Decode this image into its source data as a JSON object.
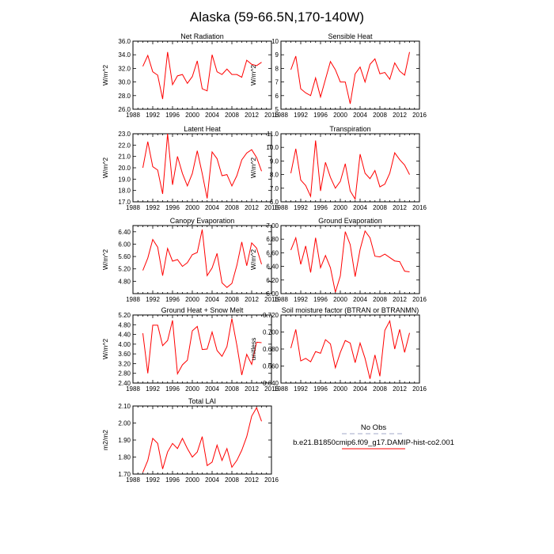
{
  "figure": {
    "title": "Alaska (59-66.5N,170-140W)"
  },
  "legend": {
    "obs_label": "No Obs",
    "obs_color": "#a0a8c8",
    "model_label": "b.e21.B1850cmip6.f09_g17.DAMIP-hist-co2.001",
    "model_color": "#ff0000"
  },
  "chart_data": [
    {
      "type": "line",
      "title": "Net Radiation",
      "ylabel": "W/m^2",
      "xlim": [
        1988,
        2016
      ],
      "ylim": [
        26,
        36
      ],
      "xticks": [
        1988,
        1992,
        1996,
        2000,
        2004,
        2008,
        2012,
        2016
      ],
      "yticks": [
        "26.0",
        "28.0",
        "30.0",
        "32.0",
        "34.0",
        "36.0"
      ],
      "grid": false,
      "series": [
        {
          "x": [
            1990,
            1991,
            1992,
            1993,
            1994,
            1995,
            1996,
            1997,
            1998,
            1999,
            2000,
            2001,
            2002,
            2003,
            2004,
            2005,
            2006,
            2007,
            2008,
            2009,
            2010,
            2011,
            2012,
            2013,
            2014
          ],
          "values": [
            32.3,
            33.9,
            31.5,
            31.0,
            27.5,
            34.4,
            29.6,
            30.9,
            31.1,
            29.8,
            30.8,
            33.1,
            29.0,
            28.7,
            34.0,
            31.5,
            31.1,
            31.9,
            31.1,
            31.1,
            30.7,
            33.2,
            32.6,
            32.4,
            32.9
          ]
        }
      ]
    },
    {
      "type": "line",
      "title": "Sensible Heat",
      "ylabel": "W/m^2",
      "xlim": [
        1988,
        2016
      ],
      "ylim": [
        5,
        10
      ],
      "xticks": [
        1988,
        1992,
        1996,
        2000,
        2004,
        2008,
        2012,
        2016
      ],
      "yticks": [
        "5",
        "6",
        "7",
        "8",
        "9",
        "10"
      ],
      "grid": false,
      "series": [
        {
          "x": [
            1990,
            1991,
            1992,
            1993,
            1994,
            1995,
            1996,
            1997,
            1998,
            1999,
            2000,
            2001,
            2002,
            2003,
            2004,
            2005,
            2006,
            2007,
            2008,
            2009,
            2010,
            2011,
            2012,
            2013,
            2014
          ],
          "values": [
            7.9,
            8.9,
            6.5,
            6.2,
            6.0,
            7.3,
            5.9,
            7.2,
            8.5,
            7.9,
            7.0,
            7.0,
            5.4,
            7.6,
            8.1,
            7.0,
            8.3,
            8.7,
            7.6,
            7.7,
            7.2,
            8.4,
            7.8,
            7.5,
            9.2
          ]
        }
      ]
    },
    {
      "type": "line",
      "title": "Latent Heat",
      "ylabel": "W/m^2",
      "xlim": [
        1988,
        2016
      ],
      "ylim": [
        17,
        23
      ],
      "xticks": [
        1988,
        1992,
        1996,
        2000,
        2004,
        2008,
        2012,
        2016
      ],
      "yticks": [
        "17.0",
        "18.0",
        "19.0",
        "20.0",
        "21.0",
        "22.0",
        "23.0"
      ],
      "grid": false,
      "series": [
        {
          "x": [
            1990,
            1991,
            1992,
            1993,
            1994,
            1995,
            1996,
            1997,
            1998,
            1999,
            2000,
            2001,
            2002,
            2003,
            2004,
            2005,
            2006,
            2007,
            2008,
            2009,
            2010,
            2011,
            2012,
            2013,
            2014
          ],
          "values": [
            20.0,
            22.3,
            20.1,
            19.8,
            17.7,
            23.0,
            18.5,
            21.0,
            19.5,
            18.4,
            19.5,
            21.5,
            19.5,
            17.3,
            21.4,
            20.8,
            19.3,
            19.4,
            18.4,
            19.3,
            20.7,
            21.3,
            21.6,
            20.9,
            19.7
          ]
        }
      ]
    },
    {
      "type": "line",
      "title": "Transpiration",
      "ylabel": "W/m^2",
      "xlim": [
        1988,
        2016
      ],
      "ylim": [
        6,
        11
      ],
      "xticks": [
        1988,
        1992,
        1996,
        2000,
        2004,
        2008,
        2012,
        2016
      ],
      "yticks": [
        "6.0",
        "7.0",
        "8.0",
        "9.0",
        "10.0",
        "11.0"
      ],
      "grid": false,
      "series": [
        {
          "x": [
            1990,
            1991,
            1992,
            1993,
            1994,
            1995,
            1996,
            1997,
            1998,
            1999,
            2000,
            2001,
            2002,
            2003,
            2004,
            2005,
            2006,
            2007,
            2008,
            2009,
            2010,
            2011,
            2012,
            2013,
            2014
          ],
          "values": [
            8.1,
            9.9,
            7.6,
            7.2,
            6.4,
            10.5,
            6.8,
            8.9,
            7.8,
            7.0,
            7.5,
            8.8,
            6.8,
            6.2,
            9.5,
            8.1,
            7.7,
            8.3,
            7.1,
            7.3,
            8.1,
            9.6,
            9.1,
            8.7,
            8.0
          ]
        }
      ]
    },
    {
      "type": "line",
      "title": "Canopy Evaporation",
      "ylabel": "W/m^2",
      "xlim": [
        1988,
        2016
      ],
      "ylim": [
        4.4,
        6.6
      ],
      "xticks": [
        1988,
        1992,
        1996,
        2000,
        2004,
        2008,
        2012,
        2016
      ],
      "yticks": [
        "4.80",
        "5.20",
        "5.60",
        "6.00",
        "6.40"
      ],
      "grid": false,
      "series": [
        {
          "x": [
            1990,
            1991,
            1992,
            1993,
            1994,
            1995,
            1996,
            1997,
            1998,
            1999,
            2000,
            2001,
            2002,
            2003,
            2004,
            2005,
            2006,
            2007,
            2008,
            2009,
            2010,
            2011,
            2012,
            2013,
            2014
          ],
          "values": [
            5.15,
            5.55,
            6.15,
            5.9,
            4.98,
            5.86,
            5.45,
            5.5,
            5.28,
            5.4,
            5.66,
            5.73,
            6.47,
            4.98,
            5.23,
            5.7,
            4.75,
            4.6,
            4.73,
            5.31,
            6.07,
            5.3,
            6.04,
            5.87,
            5.35
          ]
        }
      ]
    },
    {
      "type": "line",
      "title": "Ground Evaporation",
      "ylabel": "W/m^2",
      "xlim": [
        1988,
        2016
      ],
      "ylim": [
        6.0,
        7.0
      ],
      "xticks": [
        1988,
        1992,
        1996,
        2000,
        2004,
        2008,
        2012,
        2016
      ],
      "yticks": [
        "6.00",
        "6.20",
        "6.40",
        "6.60",
        "6.80",
        "7.00"
      ],
      "grid": false,
      "series": [
        {
          "x": [
            1990,
            1991,
            1992,
            1993,
            1994,
            1995,
            1996,
            1997,
            1998,
            1999,
            2000,
            2001,
            2002,
            2003,
            2004,
            2005,
            2006,
            2007,
            2008,
            2009,
            2010,
            2011,
            2012,
            2013,
            2014
          ],
          "values": [
            6.64,
            6.82,
            6.43,
            6.7,
            6.31,
            6.82,
            6.38,
            6.56,
            6.38,
            6.02,
            6.26,
            6.91,
            6.72,
            6.25,
            6.65,
            6.92,
            6.82,
            6.55,
            6.54,
            6.58,
            6.53,
            6.48,
            6.47,
            6.33,
            6.32
          ]
        }
      ]
    },
    {
      "type": "line",
      "title": "Ground Heat + Snow Melt",
      "ylabel": "W/m^2",
      "xlim": [
        1988,
        2016
      ],
      "ylim": [
        2.4,
        5.2
      ],
      "xticks": [
        1988,
        1992,
        1996,
        2000,
        2004,
        2008,
        2012,
        2016
      ],
      "yticks": [
        "2.40",
        "2.80",
        "3.20",
        "3.60",
        "4.00",
        "4.40",
        "4.80",
        "5.20"
      ],
      "grid": false,
      "series": [
        {
          "x": [
            1990,
            1991,
            1992,
            1993,
            1994,
            1995,
            1996,
            1997,
            1998,
            1999,
            2000,
            2001,
            2002,
            2003,
            2004,
            2005,
            2006,
            2007,
            2008,
            2009,
            2010,
            2011,
            2012,
            2013,
            2014
          ],
          "values": [
            4.45,
            2.8,
            4.78,
            4.78,
            3.94,
            4.15,
            4.98,
            2.78,
            3.15,
            3.34,
            4.55,
            4.73,
            3.78,
            3.8,
            4.5,
            3.74,
            3.5,
            3.9,
            5.05,
            3.96,
            2.73,
            3.58,
            3.17,
            4.08,
            4.06
          ]
        }
      ]
    },
    {
      "type": "line",
      "title": "Soil moisture factor (BTRAN or BTRANMN)",
      "ylabel": "unitless",
      "xlim": [
        1988,
        2016
      ],
      "ylim": [
        0.64,
        0.72
      ],
      "xticks": [
        1988,
        1992,
        1996,
        2000,
        2004,
        2008,
        2012,
        2016
      ],
      "yticks": [
        "0.640",
        "0.660",
        "0.680",
        "0.700",
        "0.720"
      ],
      "grid": false,
      "series": [
        {
          "x": [
            1990,
            1991,
            1992,
            1993,
            1994,
            1995,
            1996,
            1997,
            1998,
            1999,
            2000,
            2001,
            2002,
            2003,
            2004,
            2005,
            2006,
            2007,
            2008,
            2009,
            2010,
            2011,
            2012,
            2013,
            2014
          ],
          "values": [
            0.681,
            0.703,
            0.666,
            0.669,
            0.665,
            0.677,
            0.675,
            0.691,
            0.686,
            0.658,
            0.676,
            0.69,
            0.687,
            0.664,
            0.687,
            0.669,
            0.645,
            0.673,
            0.648,
            0.702,
            0.713,
            0.68,
            0.703,
            0.676,
            0.699
          ]
        }
      ]
    },
    {
      "type": "line",
      "title": "Total LAI",
      "ylabel": "m2/m2",
      "xlim": [
        1988,
        2016
      ],
      "ylim": [
        1.7,
        2.1
      ],
      "xticks": [
        1988,
        1992,
        1996,
        2000,
        2004,
        2008,
        2012,
        2016
      ],
      "yticks": [
        "1.70",
        "1.80",
        "1.90",
        "2.00",
        "2.10"
      ],
      "grid": false,
      "series": [
        {
          "x": [
            1990,
            1991,
            1992,
            1993,
            1994,
            1995,
            1996,
            1997,
            1998,
            1999,
            2000,
            2001,
            2002,
            2003,
            2004,
            2005,
            2006,
            2007,
            2008,
            2009,
            2010,
            2011,
            2012,
            2013,
            2014
          ],
          "values": [
            1.71,
            1.78,
            1.91,
            1.88,
            1.73,
            1.83,
            1.88,
            1.85,
            1.91,
            1.85,
            1.8,
            1.83,
            1.92,
            1.75,
            1.77,
            1.87,
            1.78,
            1.85,
            1.74,
            1.78,
            1.84,
            1.92,
            2.04,
            2.09,
            2.01
          ]
        }
      ]
    }
  ]
}
